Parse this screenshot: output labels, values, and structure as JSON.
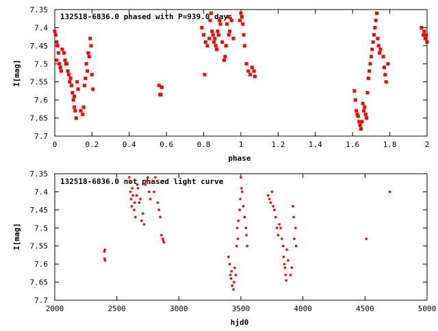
{
  "chart_data": [
    {
      "type": "scatter",
      "title": "132518-6836.0 phased with P=939.0 days",
      "xlabel": "phase",
      "ylabel": "I[mag]",
      "xlim": [
        0,
        2
      ],
      "ylim": [
        7.35,
        7.7
      ],
      "y_inverted": true,
      "xticks": [
        "0",
        "0.2",
        "0.4",
        "0.6",
        "0.8",
        "1",
        "1.2",
        "1.4",
        "1.6",
        "1.8",
        "2"
      ],
      "yticks": [
        "7.35",
        "7.4",
        "7.45",
        "7.5",
        "7.55",
        "7.6",
        "7.65",
        "7.7"
      ],
      "marker": "cross",
      "color": "#ff0000",
      "points": [
        [
          0.0,
          7.41
        ],
        [
          0.005,
          7.42
        ],
        [
          0.01,
          7.44
        ],
        [
          0.015,
          7.45
        ],
        [
          0.01,
          7.49
        ],
        [
          0.02,
          7.47
        ],
        [
          0.025,
          7.5
        ],
        [
          0.03,
          7.51
        ],
        [
          0.035,
          7.52
        ],
        [
          0.04,
          7.46
        ],
        [
          0.05,
          7.47
        ],
        [
          0.055,
          7.49
        ],
        [
          0.06,
          7.5
        ],
        [
          0.065,
          7.5
        ],
        [
          0.07,
          7.52
        ],
        [
          0.075,
          7.53
        ],
        [
          0.08,
          7.55
        ],
        [
          0.085,
          7.54
        ],
        [
          0.09,
          7.56
        ],
        [
          0.095,
          7.58
        ],
        [
          0.1,
          7.6
        ],
        [
          0.105,
          7.62
        ],
        [
          0.11,
          7.63
        ],
        [
          0.115,
          7.65
        ],
        [
          0.105,
          7.59
        ],
        [
          0.12,
          7.55
        ],
        [
          0.125,
          7.57
        ],
        [
          0.14,
          7.63
        ],
        [
          0.15,
          7.64
        ],
        [
          0.155,
          7.62
        ],
        [
          0.16,
          7.56
        ],
        [
          0.165,
          7.54
        ],
        [
          0.17,
          7.5
        ],
        [
          0.175,
          7.52
        ],
        [
          0.18,
          7.47
        ],
        [
          0.185,
          7.48
        ],
        [
          0.19,
          7.43
        ],
        [
          0.195,
          7.45
        ],
        [
          0.2,
          7.53
        ],
        [
          0.205,
          7.57
        ],
        [
          0.56,
          7.56
        ],
        [
          0.57,
          7.585
        ],
        [
          0.575,
          7.565
        ],
        [
          0.565,
          7.585
        ],
        [
          0.79,
          7.4
        ],
        [
          0.8,
          7.42
        ],
        [
          0.805,
          7.53
        ],
        [
          0.81,
          7.44
        ],
        [
          0.82,
          7.45
        ],
        [
          0.83,
          7.43
        ],
        [
          0.835,
          7.38
        ],
        [
          0.84,
          7.36
        ],
        [
          0.845,
          7.41
        ],
        [
          0.85,
          7.42
        ],
        [
          0.855,
          7.44
        ],
        [
          0.86,
          7.43
        ],
        [
          0.865,
          7.45
        ],
        [
          0.87,
          7.46
        ],
        [
          0.875,
          7.41
        ],
        [
          0.88,
          7.42
        ],
        [
          0.885,
          7.38
        ],
        [
          0.89,
          7.39
        ],
        [
          0.9,
          7.44
        ],
        [
          0.91,
          7.49
        ],
        [
          0.915,
          7.48
        ],
        [
          0.92,
          7.45
        ],
        [
          0.925,
          7.39
        ],
        [
          0.93,
          7.37
        ],
        [
          0.935,
          7.42
        ],
        [
          0.94,
          7.41
        ],
        [
          0.95,
          7.38
        ],
        [
          0.96,
          7.43
        ],
        [
          0.995,
          7.38
        ],
        [
          1.0,
          7.36
        ],
        [
          1.005,
          7.37
        ],
        [
          1.01,
          7.39
        ],
        [
          1.015,
          7.42
        ],
        [
          1.02,
          7.45
        ],
        [
          1.03,
          7.5
        ],
        [
          1.04,
          7.52
        ],
        [
          1.05,
          7.53
        ],
        [
          1.06,
          7.51
        ],
        [
          1.07,
          7.52
        ],
        [
          1.075,
          7.535
        ],
        [
          1.61,
          7.575
        ],
        [
          1.615,
          7.6
        ],
        [
          1.62,
          7.63
        ],
        [
          1.625,
          7.64
        ],
        [
          1.63,
          7.645
        ],
        [
          1.635,
          7.66
        ],
        [
          1.64,
          7.67
        ],
        [
          1.645,
          7.68
        ],
        [
          1.65,
          7.66
        ],
        [
          1.655,
          7.61
        ],
        [
          1.66,
          7.63
        ],
        [
          1.665,
          7.62
        ],
        [
          1.67,
          7.64
        ],
        [
          1.675,
          7.65
        ],
        [
          1.68,
          7.58
        ],
        [
          1.685,
          7.54
        ],
        [
          1.69,
          7.52
        ],
        [
          1.695,
          7.5
        ],
        [
          1.7,
          7.48
        ],
        [
          1.705,
          7.46
        ],
        [
          1.71,
          7.44
        ],
        [
          1.715,
          7.42
        ],
        [
          1.72,
          7.4
        ],
        [
          1.725,
          7.38
        ],
        [
          1.73,
          7.36
        ],
        [
          1.735,
          7.43
        ],
        [
          1.74,
          7.45
        ],
        [
          1.745,
          7.47
        ],
        [
          1.75,
          7.46
        ],
        [
          1.765,
          7.48
        ],
        [
          1.77,
          7.51
        ],
        [
          1.775,
          7.53
        ],
        [
          1.78,
          7.55
        ],
        [
          1.79,
          7.5
        ],
        [
          1.97,
          7.4
        ],
        [
          1.98,
          7.42
        ],
        [
          1.985,
          7.41
        ],
        [
          1.99,
          7.43
        ],
        [
          1.995,
          7.42
        ],
        [
          2.0,
          7.44
        ]
      ]
    },
    {
      "type": "scatter",
      "title": "132518-6836.0 not phased light curve",
      "xlabel": "hjd0",
      "ylabel": "I[mag]",
      "xlim": [
        2000,
        5000
      ],
      "ylim": [
        7.35,
        7.7
      ],
      "y_inverted": true,
      "xticks": [
        "2000",
        "2500",
        "3000",
        "3500",
        "4000",
        "4500",
        "5000"
      ],
      "yticks": [
        "7.35",
        "7.4",
        "7.45",
        "7.5",
        "7.55",
        "7.6",
        "7.65",
        "7.7"
      ],
      "marker": "dot",
      "color": "#ff0000",
      "points": [
        [
          2400,
          7.565
        ],
        [
          2402,
          7.585
        ],
        [
          2404,
          7.56
        ],
        [
          2405,
          7.59
        ],
        [
          2600,
          7.36
        ],
        [
          2605,
          7.37
        ],
        [
          2610,
          7.4
        ],
        [
          2615,
          7.42
        ],
        [
          2620,
          7.44
        ],
        [
          2625,
          7.39
        ],
        [
          2630,
          7.41
        ],
        [
          2640,
          7.45
        ],
        [
          2645,
          7.43
        ],
        [
          2650,
          7.47
        ],
        [
          2660,
          7.41
        ],
        [
          2665,
          7.38
        ],
        [
          2670,
          7.39
        ],
        [
          2680,
          7.43
        ],
        [
          2690,
          7.42
        ],
        [
          2700,
          7.48
        ],
        [
          2710,
          7.46
        ],
        [
          2720,
          7.49
        ],
        [
          2730,
          7.38
        ],
        [
          2740,
          7.37
        ],
        [
          2750,
          7.36
        ],
        [
          2760,
          7.4
        ],
        [
          2770,
          7.42
        ],
        [
          2790,
          7.37
        ],
        [
          2800,
          7.4
        ],
        [
          2810,
          7.36
        ],
        [
          2830,
          7.43
        ],
        [
          2840,
          7.45
        ],
        [
          2850,
          7.47
        ],
        [
          2860,
          7.52
        ],
        [
          2870,
          7.53
        ],
        [
          2880,
          7.54
        ],
        [
          2875,
          7.535
        ],
        [
          3400,
          7.58
        ],
        [
          3410,
          7.6
        ],
        [
          3415,
          7.63
        ],
        [
          3420,
          7.64
        ],
        [
          3425,
          7.62
        ],
        [
          3430,
          7.66
        ],
        [
          3440,
          7.67
        ],
        [
          3445,
          7.65
        ],
        [
          3450,
          7.61
        ],
        [
          3460,
          7.63
        ],
        [
          3465,
          7.55
        ],
        [
          3470,
          7.5
        ],
        [
          3475,
          7.53
        ],
        [
          3480,
          7.48
        ],
        [
          3490,
          7.45
        ],
        [
          3495,
          7.42
        ],
        [
          3500,
          7.36
        ],
        [
          3505,
          7.39
        ],
        [
          3510,
          7.4
        ],
        [
          3520,
          7.44
        ],
        [
          3530,
          7.47
        ],
        [
          3540,
          7.5
        ],
        [
          3545,
          7.52
        ],
        [
          3550,
          7.55
        ],
        [
          3720,
          7.41
        ],
        [
          3730,
          7.42
        ],
        [
          3740,
          7.43
        ],
        [
          3750,
          7.4
        ],
        [
          3760,
          7.44
        ],
        [
          3770,
          7.45
        ],
        [
          3780,
          7.47
        ],
        [
          3790,
          7.5
        ],
        [
          3800,
          7.52
        ],
        [
          3810,
          7.49
        ],
        [
          3820,
          7.5
        ],
        [
          3830,
          7.53
        ],
        [
          3840,
          7.55
        ],
        [
          3845,
          7.58
        ],
        [
          3850,
          7.6
        ],
        [
          3855,
          7.61
        ],
        [
          3860,
          7.63
        ],
        [
          3865,
          7.645
        ],
        [
          3870,
          7.56
        ],
        [
          3880,
          7.59
        ],
        [
          3900,
          7.63
        ],
        [
          3910,
          7.61
        ],
        [
          3920,
          7.44
        ],
        [
          3925,
          7.47
        ],
        [
          3930,
          7.53
        ],
        [
          3940,
          7.5
        ],
        [
          3945,
          7.55
        ],
        [
          4510,
          7.53
        ],
        [
          4700,
          7.4
        ]
      ]
    }
  ]
}
